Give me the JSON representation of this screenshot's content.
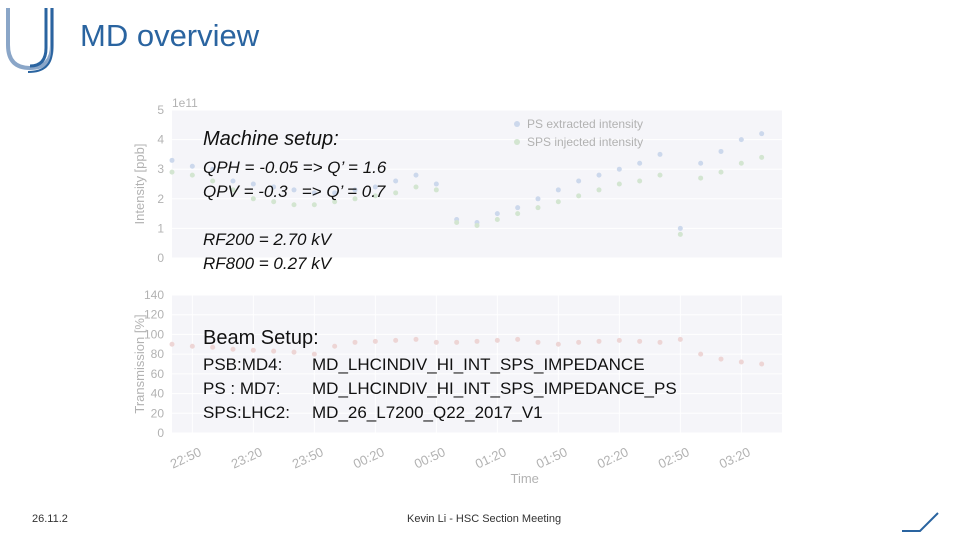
{
  "header": {
    "title": "MD overview"
  },
  "chart_data": [
    {
      "type": "scatter",
      "ylabel": "Intensity [ppb]",
      "offset_label": "1e11",
      "x": [
        "22:40",
        "22:50",
        "23:00",
        "23:10",
        "23:20",
        "23:30",
        "23:40",
        "23:50",
        "00:00",
        "00:10",
        "00:20",
        "00:30",
        "00:40",
        "00:50",
        "01:00",
        "01:10",
        "01:20",
        "01:30",
        "01:40",
        "01:50",
        "02:00",
        "02:10",
        "02:20",
        "02:30",
        "02:40",
        "02:50",
        "03:00",
        "03:10",
        "03:20",
        "03:30"
      ],
      "xlim": [
        "22:40",
        "03:40"
      ],
      "ylim": [
        0,
        5
      ],
      "yticks": [
        0,
        1,
        2,
        3,
        4,
        5
      ],
      "grid": true,
      "legend": "upper center",
      "series": [
        {
          "name": "PS extracted intensity",
          "color": "#8fa9d6",
          "values": [
            3.3,
            3.1,
            3.0,
            2.6,
            2.5,
            2.4,
            2.3,
            2.2,
            2.2,
            2.3,
            2.4,
            2.6,
            2.8,
            2.5,
            1.3,
            1.2,
            1.5,
            1.7,
            2.0,
            2.3,
            2.6,
            2.8,
            3.0,
            3.2,
            3.5,
            1.0,
            3.2,
            3.6,
            4.0,
            4.2
          ]
        },
        {
          "name": "SPS injected intensity",
          "color": "#9ec79a",
          "values": [
            2.9,
            2.8,
            2.6,
            2.3,
            2.0,
            1.9,
            1.8,
            1.8,
            1.9,
            2.0,
            2.1,
            2.2,
            2.4,
            2.3,
            1.2,
            1.1,
            1.3,
            1.5,
            1.7,
            1.9,
            2.1,
            2.3,
            2.5,
            2.6,
            2.8,
            0.8,
            2.7,
            2.9,
            3.2,
            3.4
          ]
        }
      ]
    },
    {
      "type": "scatter",
      "ylabel": "Transmission [%]",
      "xlabel": "Time",
      "x": [
        "22:40",
        "22:50",
        "23:00",
        "23:10",
        "23:20",
        "23:30",
        "23:40",
        "23:50",
        "00:00",
        "00:10",
        "00:20",
        "00:30",
        "00:40",
        "00:50",
        "01:00",
        "01:10",
        "01:20",
        "01:30",
        "01:40",
        "01:50",
        "02:00",
        "02:10",
        "02:20",
        "02:30",
        "02:40",
        "02:50",
        "03:00",
        "03:10",
        "03:20",
        "03:30"
      ],
      "xlim": [
        "22:40",
        "03:40"
      ],
      "xticks": [
        {
          "value": "22:50",
          "label": "22:50"
        },
        {
          "value": "23:20",
          "label": "23:20"
        },
        {
          "value": "23:50",
          "label": "23:50"
        },
        {
          "value": "00:20",
          "label": "00:20"
        },
        {
          "value": "00:50",
          "label": "00:50"
        },
        {
          "value": "01:20",
          "label": "01:20"
        },
        {
          "value": "01:50",
          "label": "01:50"
        },
        {
          "value": "02:20",
          "label": "02:20"
        },
        {
          "value": "02:50",
          "label": "02:50"
        },
        {
          "value": "03:20",
          "label": "03:20"
        }
      ],
      "ylim": [
        0,
        140
      ],
      "yticks": [
        0,
        20,
        40,
        60,
        80,
        100,
        120,
        140
      ],
      "grid": true,
      "series": [
        {
          "color": "#d9a3a3",
          "values": [
            90,
            88,
            87,
            85,
            84,
            83,
            82,
            80,
            88,
            92,
            93,
            94,
            95,
            92,
            92,
            93,
            94,
            95,
            92,
            90,
            92,
            93,
            94,
            93,
            92,
            95,
            80,
            75,
            72,
            70
          ]
        }
      ]
    }
  ],
  "machine_setup": {
    "heading": "Machine setup:",
    "lines": [
      "QPH = -0.05 => Q’ = 1.6",
      "QPV = -0.3   => Q’ = 0.7"
    ],
    "rf": [
      "RF200 = 2.70 kV",
      "RF800 = 0.27 kV"
    ]
  },
  "beam_setup": {
    "heading": "Beam Setup:",
    "rows": [
      [
        "PSB:MD4:",
        "MD_LHCINDIV_HI_INT_SPS_IMPEDANCE"
      ],
      [
        "PS : MD7:",
        "MD_LHCINDIV_HI_INT_SPS_IMPEDANCE_PS"
      ],
      [
        "SPS:LHC2:",
        "MD_26_L7200_Q22_2017_V1"
      ]
    ]
  },
  "footer": {
    "date": "26.11.2",
    "center": "Kevin Li - HSC Section Meeting"
  }
}
